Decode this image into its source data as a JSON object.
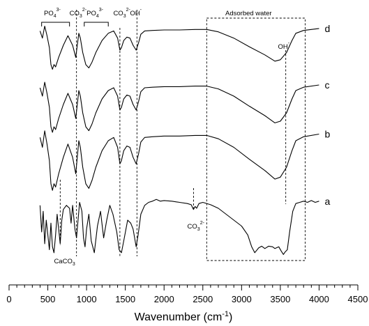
{
  "chart_data": {
    "type": "line",
    "title": "",
    "xlabel": "Wavenumber (cm-1)",
    "xlabel_main": "Wavenumber (cm",
    "xlabel_sup": "-1",
    "xlabel_close": ")",
    "ylabel": "",
    "xlim": [
      0,
      4500
    ],
    "x_ticks": [
      0,
      500,
      1000,
      1500,
      2000,
      2500,
      3000,
      3500,
      4000,
      4500
    ],
    "x_minor_step": 100,
    "y_axis_shown": false,
    "legend": "none",
    "grid": false,
    "series": [
      {
        "name": "d",
        "points": [
          [
            400,
            0.85
          ],
          [
            430,
            0.7
          ],
          [
            460,
            0.95
          ],
          [
            490,
            0.75
          ],
          [
            520,
            0.5
          ],
          [
            540,
            0.15
          ],
          [
            560,
            0.05
          ],
          [
            580,
            0.15
          ],
          [
            600,
            0.1
          ],
          [
            640,
            0.3
          ],
          [
            700,
            0.55
          ],
          [
            760,
            0.75
          ],
          [
            820,
            0.55
          ],
          [
            860,
            0.3
          ],
          [
            880,
            0.55
          ],
          [
            900,
            0.8
          ],
          [
            920,
            0.7
          ],
          [
            950,
            0.4
          ],
          [
            990,
            0.15
          ],
          [
            1030,
            0.08
          ],
          [
            1070,
            0.2
          ],
          [
            1120,
            0.4
          ],
          [
            1200,
            0.65
          ],
          [
            1280,
            0.8
          ],
          [
            1350,
            0.85
          ],
          [
            1400,
            0.7
          ],
          [
            1430,
            0.45
          ],
          [
            1450,
            0.5
          ],
          [
            1480,
            0.65
          ],
          [
            1520,
            0.72
          ],
          [
            1560,
            0.7
          ],
          [
            1600,
            0.55
          ],
          [
            1640,
            0.45
          ],
          [
            1670,
            0.6
          ],
          [
            1700,
            0.78
          ],
          [
            1750,
            0.85
          ],
          [
            1850,
            0.86
          ],
          [
            2000,
            0.87
          ],
          [
            2200,
            0.87
          ],
          [
            2400,
            0.88
          ],
          [
            2550,
            0.88
          ],
          [
            2700,
            0.83
          ],
          [
            2900,
            0.7
          ],
          [
            3100,
            0.52
          ],
          [
            3300,
            0.35
          ],
          [
            3430,
            0.22
          ],
          [
            3500,
            0.25
          ],
          [
            3580,
            0.4
          ],
          [
            3650,
            0.65
          ],
          [
            3700,
            0.8
          ],
          [
            3800,
            0.86
          ],
          [
            4000,
            0.9
          ]
        ]
      },
      {
        "name": "c",
        "points": [
          [
            400,
            0.85
          ],
          [
            430,
            0.7
          ],
          [
            460,
            0.95
          ],
          [
            490,
            0.75
          ],
          [
            520,
            0.5
          ],
          [
            540,
            0.15
          ],
          [
            560,
            0.05
          ],
          [
            580,
            0.15
          ],
          [
            600,
            0.1
          ],
          [
            640,
            0.3
          ],
          [
            700,
            0.55
          ],
          [
            760,
            0.75
          ],
          [
            820,
            0.55
          ],
          [
            860,
            0.3
          ],
          [
            880,
            0.55
          ],
          [
            900,
            0.8
          ],
          [
            920,
            0.7
          ],
          [
            950,
            0.4
          ],
          [
            990,
            0.15
          ],
          [
            1030,
            0.08
          ],
          [
            1070,
            0.2
          ],
          [
            1120,
            0.4
          ],
          [
            1200,
            0.65
          ],
          [
            1280,
            0.8
          ],
          [
            1350,
            0.85
          ],
          [
            1400,
            0.7
          ],
          [
            1430,
            0.45
          ],
          [
            1450,
            0.5
          ],
          [
            1480,
            0.65
          ],
          [
            1520,
            0.72
          ],
          [
            1560,
            0.7
          ],
          [
            1600,
            0.55
          ],
          [
            1640,
            0.45
          ],
          [
            1670,
            0.6
          ],
          [
            1700,
            0.78
          ],
          [
            1750,
            0.85
          ],
          [
            1850,
            0.86
          ],
          [
            2000,
            0.87
          ],
          [
            2200,
            0.87
          ],
          [
            2400,
            0.88
          ],
          [
            2550,
            0.88
          ],
          [
            2700,
            0.83
          ],
          [
            2900,
            0.7
          ],
          [
            3100,
            0.52
          ],
          [
            3300,
            0.35
          ],
          [
            3430,
            0.22
          ],
          [
            3500,
            0.25
          ],
          [
            3580,
            0.4
          ],
          [
            3650,
            0.65
          ],
          [
            3700,
            0.8
          ],
          [
            3800,
            0.86
          ],
          [
            4000,
            0.9
          ]
        ]
      },
      {
        "name": "b",
        "points": [
          [
            400,
            0.85
          ],
          [
            430,
            0.7
          ],
          [
            460,
            0.95
          ],
          [
            490,
            0.75
          ],
          [
            520,
            0.5
          ],
          [
            540,
            0.15
          ],
          [
            560,
            0.05
          ],
          [
            580,
            0.15
          ],
          [
            600,
            0.1
          ],
          [
            640,
            0.3
          ],
          [
            700,
            0.55
          ],
          [
            760,
            0.75
          ],
          [
            820,
            0.55
          ],
          [
            860,
            0.3
          ],
          [
            880,
            0.55
          ],
          [
            900,
            0.8
          ],
          [
            920,
            0.7
          ],
          [
            950,
            0.4
          ],
          [
            990,
            0.15
          ],
          [
            1030,
            0.08
          ],
          [
            1070,
            0.2
          ],
          [
            1120,
            0.4
          ],
          [
            1200,
            0.65
          ],
          [
            1280,
            0.8
          ],
          [
            1350,
            0.85
          ],
          [
            1400,
            0.7
          ],
          [
            1430,
            0.45
          ],
          [
            1450,
            0.5
          ],
          [
            1480,
            0.65
          ],
          [
            1520,
            0.72
          ],
          [
            1560,
            0.7
          ],
          [
            1600,
            0.55
          ],
          [
            1640,
            0.45
          ],
          [
            1670,
            0.6
          ],
          [
            1700,
            0.78
          ],
          [
            1750,
            0.85
          ],
          [
            1850,
            0.86
          ],
          [
            2000,
            0.87
          ],
          [
            2200,
            0.87
          ],
          [
            2400,
            0.88
          ],
          [
            2550,
            0.88
          ],
          [
            2700,
            0.83
          ],
          [
            2900,
            0.7
          ],
          [
            3100,
            0.52
          ],
          [
            3300,
            0.35
          ],
          [
            3430,
            0.22
          ],
          [
            3500,
            0.25
          ],
          [
            3580,
            0.4
          ],
          [
            3650,
            0.65
          ],
          [
            3700,
            0.8
          ],
          [
            3800,
            0.86
          ],
          [
            4000,
            0.9
          ]
        ]
      },
      {
        "name": "a",
        "points": [
          [
            400,
            0.85
          ],
          [
            420,
            0.4
          ],
          [
            440,
            0.75
          ],
          [
            460,
            0.2
          ],
          [
            480,
            0.6
          ],
          [
            500,
            0.35
          ],
          [
            520,
            0.1
          ],
          [
            540,
            0.55
          ],
          [
            560,
            0.15
          ],
          [
            580,
            0.05
          ],
          [
            600,
            0.35
          ],
          [
            620,
            0.7
          ],
          [
            640,
            0.45
          ],
          [
            660,
            0.2
          ],
          [
            680,
            0.6
          ],
          [
            700,
            0.78
          ],
          [
            740,
            0.85
          ],
          [
            780,
            0.8
          ],
          [
            800,
            0.55
          ],
          [
            820,
            0.85
          ],
          [
            850,
            0.45
          ],
          [
            870,
            0.3
          ],
          [
            890,
            0.6
          ],
          [
            910,
            0.9
          ],
          [
            940,
            0.75
          ],
          [
            960,
            0.3
          ],
          [
            980,
            0.15
          ],
          [
            1000,
            0.45
          ],
          [
            1030,
            0.7
          ],
          [
            1060,
            0.25
          ],
          [
            1100,
            0.05
          ],
          [
            1140,
            0.5
          ],
          [
            1180,
            0.75
          ],
          [
            1220,
            0.3
          ],
          [
            1260,
            0.6
          ],
          [
            1300,
            0.85
          ],
          [
            1340,
            0.7
          ],
          [
            1390,
            0.4
          ],
          [
            1420,
            0.1
          ],
          [
            1450,
            0.05
          ],
          [
            1480,
            0.25
          ],
          [
            1530,
            0.6
          ],
          [
            1570,
            0.55
          ],
          [
            1600,
            0.45
          ],
          [
            1640,
            0.15
          ],
          [
            1665,
            0.35
          ],
          [
            1700,
            0.7
          ],
          [
            1750,
            0.85
          ],
          [
            1800,
            0.9
          ],
          [
            1850,
            0.92
          ],
          [
            1900,
            0.95
          ],
          [
            1950,
            0.92
          ],
          [
            2000,
            0.93
          ],
          [
            2100,
            0.92
          ],
          [
            2200,
            0.9
          ],
          [
            2300,
            0.88
          ],
          [
            2350,
            0.86
          ],
          [
            2380,
            0.78
          ],
          [
            2400,
            0.83
          ],
          [
            2420,
            0.8
          ],
          [
            2450,
            0.88
          ],
          [
            2500,
            0.9
          ],
          [
            2600,
            0.86
          ],
          [
            2700,
            0.8
          ],
          [
            2800,
            0.7
          ],
          [
            2900,
            0.6
          ],
          [
            3000,
            0.5
          ],
          [
            3080,
            0.35
          ],
          [
            3130,
            0.15
          ],
          [
            3170,
            0.05
          ],
          [
            3220,
            0.13
          ],
          [
            3260,
            0.16
          ],
          [
            3300,
            0.12
          ],
          [
            3350,
            0.16
          ],
          [
            3400,
            0.15
          ],
          [
            3430,
            0.12
          ],
          [
            3480,
            0.15
          ],
          [
            3510,
            0.08
          ],
          [
            3540,
            0.02
          ],
          [
            3560,
            0.06
          ],
          [
            3590,
            0.1
          ],
          [
            3620,
            0.4
          ],
          [
            3660,
            0.75
          ],
          [
            3700,
            0.88
          ],
          [
            3750,
            0.9
          ],
          [
            3800,
            0.92
          ],
          [
            3850,
            0.9
          ],
          [
            3900,
            0.93
          ],
          [
            3950,
            0.9
          ],
          [
            4000,
            0.92
          ]
        ]
      }
    ],
    "annotations": {
      "po4_left": {
        "text": "PO",
        "sub": "4",
        "sup": "3-"
      },
      "co3_top": {
        "text": "CO",
        "sub": "3",
        "sup": "2-"
      },
      "po4_right": {
        "text": "PO",
        "sub": "4",
        "sup": "3-"
      },
      "co3_mid": {
        "text": "CO",
        "sub": "3",
        "sup": "2-"
      },
      "oh_top": {
        "text": "OH",
        "sup": "-"
      },
      "adsorbed_water": {
        "text": "Adsorbed water"
      },
      "oh_right": {
        "text": "OH",
        "sup": "-"
      },
      "co3_low": {
        "text": "CO",
        "sub": "3",
        "sup": "2-"
      },
      "caco3": {
        "text": "CaCO",
        "sub": "3"
      }
    },
    "reference_lines_cm-1": [
      870,
      1430,
      1650,
      3570
    ],
    "adsorbed_water_range_cm-1": [
      2550,
      3820
    ]
  }
}
